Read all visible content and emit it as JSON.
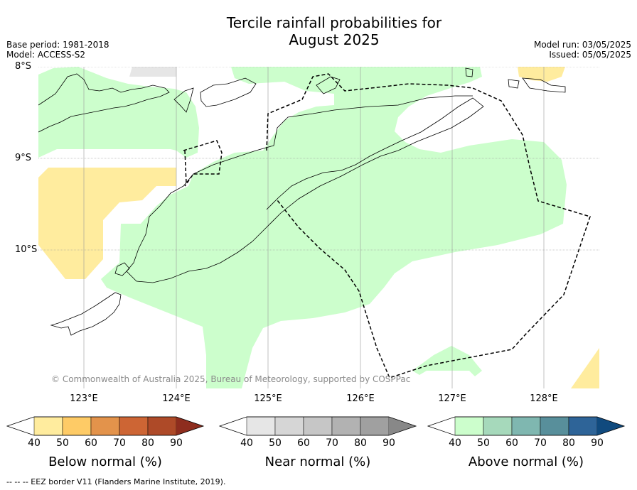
{
  "title_line1": "Tercile rainfall probabilities for",
  "title_line2": "August 2025",
  "base_period": "Base period: 1981-2018",
  "model": "Model: ACCESS-S2",
  "model_run": "Model run: 03/05/2025",
  "issued": "Issued: 05/05/2025",
  "lat_labels": [
    "8°S",
    "9°S",
    "10°S"
  ],
  "lon_labels": [
    "123°E",
    "124°E",
    "125°E",
    "126°E",
    "127°E",
    "128°E"
  ],
  "copyright": "© Commonwealth of Australia 2025, Bureau of Meteorology, supported by COSPPac",
  "colorbars": [
    {
      "title": "Below normal (%)",
      "ticks": [
        "40",
        "50",
        "60",
        "70",
        "80",
        "90"
      ],
      "colors": [
        "#ffffff",
        "#ffec9e",
        "#fecb66",
        "#e3934b",
        "#cd6534",
        "#ae4a28",
        "#8e2d1e"
      ]
    },
    {
      "title": "Near normal (%)",
      "ticks": [
        "40",
        "50",
        "60",
        "70",
        "80",
        "90"
      ],
      "colors": [
        "#ffffff",
        "#e6e6e6",
        "#d6d6d6",
        "#c6c6c6",
        "#b2b2b2",
        "#a0a0a0",
        "#888888"
      ]
    },
    {
      "title": "Above normal (%)",
      "ticks": [
        "40",
        "50",
        "60",
        "70",
        "80",
        "90"
      ],
      "colors": [
        "#ffffff",
        "#ccfecc",
        "#a6d9bb",
        "#7fb7b0",
        "#588f9b",
        "#2e6498",
        "#104a7e"
      ]
    }
  ],
  "footnote": "-- -- -- EEZ border V11 (Flanders Marine Institute, 2019).",
  "map_colors": {
    "above_40_50": "#ccfecc",
    "below_40_50": "#ffec9e",
    "near_40_50": "#e6e6e6"
  }
}
